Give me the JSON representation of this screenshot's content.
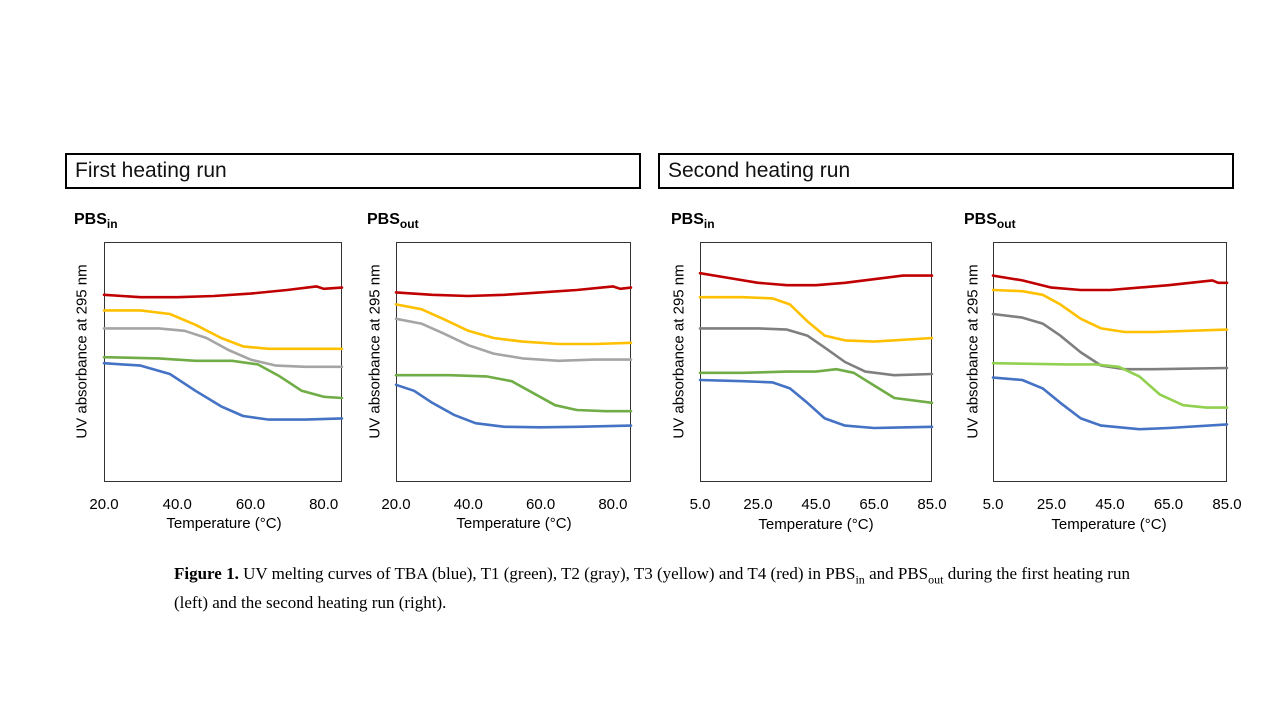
{
  "headings": {
    "first_run": "First heating run",
    "second_run": "Second heating run"
  },
  "panel_labels": {
    "base": "PBS",
    "in": "in",
    "out": "out"
  },
  "axis": {
    "ylabel": "UV absorbance at 295 nm",
    "xlabel": "Temperature (°C)"
  },
  "caption": {
    "lead": "Figure 1.",
    "text_1": " UV melting curves of TBA (blue), T1 (green), T2 (gray), T3 (yellow) and T4 (red) in PBS",
    "sub_1": "in",
    "text_2": " and PBS",
    "sub_2": "out",
    "text_3": " during the first heating run (left) and the second heating run (right)."
  },
  "colors": {
    "TBA": "#4472c4",
    "T1": "#70ad47",
    "T2": "#a5a5a5",
    "T3": "#ffc000",
    "T4": "#c00000",
    "T1_light": "#92d050",
    "T2_dark": "#7f7f7f"
  },
  "chart_data": [
    {
      "type": "line",
      "run": "First heating run",
      "panel": "PBSin",
      "xlim": [
        20,
        85
      ],
      "ylim": [
        0,
        1
      ],
      "xticks": [
        "20.0",
        "40.0",
        "60.0",
        "80.0"
      ],
      "xtick_values": [
        20,
        40,
        60,
        80
      ],
      "xlabel": "Temperature (°C)",
      "ylabel": "UV absorbance at 295 nm",
      "series": [
        {
          "key": "T4",
          "color": "#c00000",
          "points": [
            [
              20,
              0.78
            ],
            [
              30,
              0.77
            ],
            [
              40,
              0.77
            ],
            [
              50,
              0.775
            ],
            [
              60,
              0.785
            ],
            [
              70,
              0.8
            ],
            [
              78,
              0.815
            ],
            [
              80,
              0.805
            ],
            [
              85,
              0.81
            ]
          ]
        },
        {
          "key": "T3",
          "color": "#ffc000",
          "points": [
            [
              20,
              0.715
            ],
            [
              30,
              0.715
            ],
            [
              38,
              0.7
            ],
            [
              45,
              0.655
            ],
            [
              52,
              0.6
            ],
            [
              58,
              0.565
            ],
            [
              65,
              0.555
            ],
            [
              75,
              0.555
            ],
            [
              85,
              0.555
            ]
          ]
        },
        {
          "key": "T2",
          "color": "#a5a5a5",
          "points": [
            [
              20,
              0.64
            ],
            [
              35,
              0.64
            ],
            [
              42,
              0.63
            ],
            [
              48,
              0.6
            ],
            [
              54,
              0.55
            ],
            [
              60,
              0.51
            ],
            [
              67,
              0.485
            ],
            [
              75,
              0.48
            ],
            [
              85,
              0.48
            ]
          ]
        },
        {
          "key": "T1",
          "color": "#70ad47",
          "points": [
            [
              20,
              0.52
            ],
            [
              35,
              0.515
            ],
            [
              45,
              0.505
            ],
            [
              55,
              0.505
            ],
            [
              62,
              0.49
            ],
            [
              68,
              0.44
            ],
            [
              74,
              0.38
            ],
            [
              80,
              0.355
            ],
            [
              85,
              0.35
            ]
          ]
        },
        {
          "key": "TBA",
          "color": "#4472c4",
          "points": [
            [
              20,
              0.495
            ],
            [
              30,
              0.485
            ],
            [
              38,
              0.45
            ],
            [
              45,
              0.38
            ],
            [
              52,
              0.315
            ],
            [
              58,
              0.275
            ],
            [
              65,
              0.26
            ],
            [
              75,
              0.26
            ],
            [
              85,
              0.265
            ]
          ]
        }
      ]
    },
    {
      "type": "line",
      "run": "First heating run",
      "panel": "PBSout",
      "xlim": [
        20,
        85
      ],
      "ylim": [
        0,
        1
      ],
      "xticks": [
        "20.0",
        "40.0",
        "60.0",
        "80.0"
      ],
      "xtick_values": [
        20,
        40,
        60,
        80
      ],
      "xlabel": "Temperature (°C)",
      "ylabel": "UV absorbance at 295 nm",
      "series": [
        {
          "key": "T4",
          "color": "#c00000",
          "points": [
            [
              20,
              0.79
            ],
            [
              30,
              0.78
            ],
            [
              40,
              0.775
            ],
            [
              50,
              0.78
            ],
            [
              60,
              0.79
            ],
            [
              70,
              0.8
            ],
            [
              80,
              0.815
            ],
            [
              82,
              0.805
            ],
            [
              85,
              0.81
            ]
          ]
        },
        {
          "key": "T3",
          "color": "#ffc000",
          "points": [
            [
              20,
              0.74
            ],
            [
              27,
              0.72
            ],
            [
              33,
              0.68
            ],
            [
              40,
              0.63
            ],
            [
              47,
              0.6
            ],
            [
              55,
              0.585
            ],
            [
              65,
              0.575
            ],
            [
              75,
              0.575
            ],
            [
              85,
              0.58
            ]
          ]
        },
        {
          "key": "T2",
          "color": "#a5a5a5",
          "points": [
            [
              20,
              0.68
            ],
            [
              27,
              0.66
            ],
            [
              33,
              0.62
            ],
            [
              40,
              0.57
            ],
            [
              47,
              0.535
            ],
            [
              55,
              0.515
            ],
            [
              65,
              0.505
            ],
            [
              75,
              0.51
            ],
            [
              85,
              0.51
            ]
          ]
        },
        {
          "key": "T1",
          "color": "#70ad47",
          "points": [
            [
              20,
              0.445
            ],
            [
              35,
              0.445
            ],
            [
              45,
              0.44
            ],
            [
              52,
              0.42
            ],
            [
              58,
              0.37
            ],
            [
              64,
              0.32
            ],
            [
              70,
              0.3
            ],
            [
              78,
              0.295
            ],
            [
              85,
              0.295
            ]
          ]
        },
        {
          "key": "TBA",
          "color": "#4472c4",
          "points": [
            [
              20,
              0.405
            ],
            [
              25,
              0.38
            ],
            [
              30,
              0.33
            ],
            [
              36,
              0.28
            ],
            [
              42,
              0.245
            ],
            [
              50,
              0.23
            ],
            [
              60,
              0.228
            ],
            [
              70,
              0.23
            ],
            [
              85,
              0.235
            ]
          ]
        }
      ]
    },
    {
      "type": "line",
      "run": "Second heating run",
      "panel": "PBSin",
      "xlim": [
        5,
        85
      ],
      "ylim": [
        0,
        1
      ],
      "xticks": [
        "5.0",
        "25.0",
        "45.0",
        "65.0",
        "85.0"
      ],
      "xtick_values": [
        5,
        25,
        45,
        65,
        85
      ],
      "xlabel": "Temperature (°C)",
      "ylabel": "UV absorbance at 295 nm",
      "series": [
        {
          "key": "T4",
          "color": "#c00000",
          "points": [
            [
              5,
              0.87
            ],
            [
              15,
              0.85
            ],
            [
              25,
              0.83
            ],
            [
              35,
              0.82
            ],
            [
              45,
              0.82
            ],
            [
              55,
              0.83
            ],
            [
              65,
              0.845
            ],
            [
              75,
              0.86
            ],
            [
              85,
              0.86
            ]
          ]
        },
        {
          "key": "T3",
          "color": "#ffc000",
          "points": [
            [
              5,
              0.77
            ],
            [
              20,
              0.77
            ],
            [
              30,
              0.765
            ],
            [
              36,
              0.74
            ],
            [
              42,
              0.67
            ],
            [
              48,
              0.61
            ],
            [
              55,
              0.59
            ],
            [
              65,
              0.585
            ],
            [
              85,
              0.6
            ]
          ]
        },
        {
          "key": "T2",
          "color": "#7f7f7f",
          "points": [
            [
              5,
              0.64
            ],
            [
              25,
              0.64
            ],
            [
              35,
              0.635
            ],
            [
              42,
              0.61
            ],
            [
              48,
              0.56
            ],
            [
              55,
              0.5
            ],
            [
              62,
              0.46
            ],
            [
              72,
              0.445
            ],
            [
              85,
              0.45
            ]
          ]
        },
        {
          "key": "T1",
          "color": "#70ad47",
          "points": [
            [
              5,
              0.455
            ],
            [
              20,
              0.455
            ],
            [
              35,
              0.46
            ],
            [
              45,
              0.46
            ],
            [
              52,
              0.47
            ],
            [
              58,
              0.455
            ],
            [
              64,
              0.41
            ],
            [
              72,
              0.35
            ],
            [
              85,
              0.33
            ]
          ]
        },
        {
          "key": "TBA",
          "color": "#4472c4",
          "points": [
            [
              5,
              0.425
            ],
            [
              20,
              0.42
            ],
            [
              30,
              0.415
            ],
            [
              36,
              0.39
            ],
            [
              42,
              0.33
            ],
            [
              48,
              0.265
            ],
            [
              55,
              0.235
            ],
            [
              65,
              0.225
            ],
            [
              85,
              0.23
            ]
          ]
        }
      ]
    },
    {
      "type": "line",
      "run": "Second heating run",
      "panel": "PBSout",
      "xlim": [
        5,
        85
      ],
      "ylim": [
        0,
        1
      ],
      "xticks": [
        "5.0",
        "25.0",
        "45.0",
        "65.0",
        "85.0"
      ],
      "xtick_values": [
        5,
        25,
        45,
        65,
        85
      ],
      "xlabel": "Temperature (°C)",
      "ylabel": "UV absorbance at 295 nm",
      "series": [
        {
          "key": "T4",
          "color": "#c00000",
          "points": [
            [
              5,
              0.86
            ],
            [
              15,
              0.84
            ],
            [
              25,
              0.81
            ],
            [
              35,
              0.8
            ],
            [
              45,
              0.8
            ],
            [
              55,
              0.81
            ],
            [
              65,
              0.82
            ],
            [
              80,
              0.84
            ],
            [
              82,
              0.83
            ],
            [
              85,
              0.83
            ]
          ]
        },
        {
          "key": "T3",
          "color": "#ffc000",
          "points": [
            [
              5,
              0.8
            ],
            [
              15,
              0.795
            ],
            [
              22,
              0.78
            ],
            [
              28,
              0.74
            ],
            [
              35,
              0.68
            ],
            [
              42,
              0.64
            ],
            [
              50,
              0.625
            ],
            [
              60,
              0.625
            ],
            [
              85,
              0.635
            ]
          ]
        },
        {
          "key": "T2",
          "color": "#7f7f7f",
          "points": [
            [
              5,
              0.7
            ],
            [
              15,
              0.685
            ],
            [
              22,
              0.66
            ],
            [
              28,
              0.61
            ],
            [
              35,
              0.54
            ],
            [
              42,
              0.485
            ],
            [
              50,
              0.47
            ],
            [
              60,
              0.47
            ],
            [
              85,
              0.475
            ]
          ]
        },
        {
          "key": "T1",
          "color": "#92d050",
          "points": [
            [
              5,
              0.495
            ],
            [
              30,
              0.49
            ],
            [
              40,
              0.49
            ],
            [
              48,
              0.48
            ],
            [
              55,
              0.44
            ],
            [
              62,
              0.365
            ],
            [
              70,
              0.32
            ],
            [
              78,
              0.31
            ],
            [
              85,
              0.31
            ]
          ]
        },
        {
          "key": "TBA",
          "color": "#4472c4",
          "points": [
            [
              5,
              0.435
            ],
            [
              15,
              0.425
            ],
            [
              22,
              0.39
            ],
            [
              28,
              0.33
            ],
            [
              35,
              0.265
            ],
            [
              42,
              0.235
            ],
            [
              55,
              0.22
            ],
            [
              65,
              0.225
            ],
            [
              85,
              0.24
            ]
          ]
        }
      ]
    }
  ]
}
